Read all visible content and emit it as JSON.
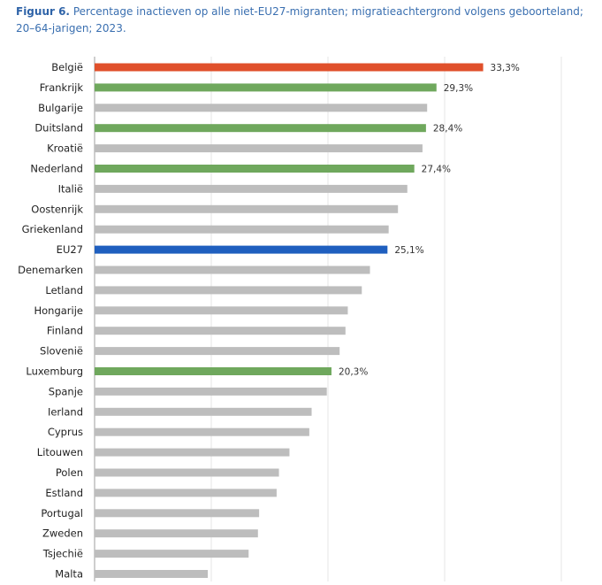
{
  "figure": {
    "lead": "Figuur 6.",
    "caption": "Percentage inactieven op alle niet-EU27-migranten; migratieachtergrond volgens geboorteland; 20–64-jarigen; 2023."
  },
  "colors": {
    "highlight_red": "#e0502b",
    "highlight_green": "#6fa85d",
    "highlight_blue": "#1f5fbf",
    "default_gray": "#bdbdbd",
    "grid": "#e6e6e6"
  },
  "chart_data": {
    "type": "bar",
    "orientation": "horizontal",
    "categories": [
      "België",
      "Frankrijk",
      "Bulgarije",
      "Duitsland",
      "Kroatië",
      "Nederland",
      "Italië",
      "Oostenrijk",
      "Griekenland",
      "EU27",
      "Denemarken",
      "Letland",
      "Hongarije",
      "Finland",
      "Slovenië",
      "Luxemburg",
      "Spanje",
      "Ierland",
      "Cyprus",
      "Litouwen",
      "Polen",
      "Estland",
      "Portugal",
      "Zweden",
      "Tsjechië",
      "Malta"
    ],
    "values": [
      33.3,
      29.3,
      28.5,
      28.4,
      28.1,
      27.4,
      26.8,
      26.0,
      25.2,
      25.1,
      23.6,
      22.9,
      21.7,
      21.5,
      21.0,
      20.3,
      19.9,
      18.6,
      18.4,
      16.7,
      15.8,
      15.6,
      14.1,
      14.0,
      13.2,
      9.7
    ],
    "value_labels": [
      "33,3%",
      "29,3%",
      "",
      "28,4%",
      "",
      "27,4%",
      "",
      "",
      "",
      "25,1%",
      "",
      "",
      "",
      "",
      "",
      "20,3%",
      "",
      "",
      "",
      "",
      "",
      "",
      "",
      "",
      "",
      ""
    ],
    "highlight": [
      "red",
      "green",
      "gray",
      "green",
      "gray",
      "green",
      "gray",
      "gray",
      "gray",
      "blue",
      "gray",
      "gray",
      "gray",
      "gray",
      "gray",
      "green",
      "gray",
      "gray",
      "gray",
      "gray",
      "gray",
      "gray",
      "gray",
      "gray",
      "gray",
      "gray"
    ],
    "xlim": [
      0,
      40
    ],
    "grid": true,
    "legend": "none"
  }
}
